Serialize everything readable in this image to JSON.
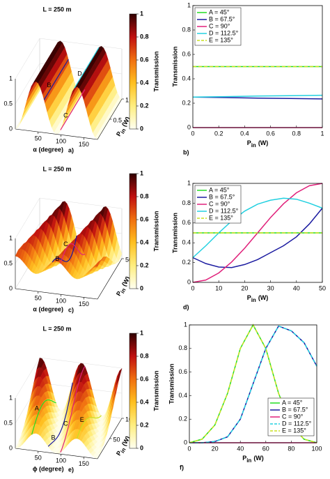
{
  "chart_data": [
    {
      "type": "surface3d",
      "title": "L = 250 m",
      "panel_label": "a)",
      "xlabel": "α (degree)",
      "ylabel": {
        "text": "P",
        "sub": "in",
        "unit": "(W)"
      },
      "xlim": [
        0,
        180
      ],
      "xticks": [
        50,
        100,
        150
      ],
      "ylim": [
        0,
        1
      ],
      "yticks": [
        0.5,
        1
      ],
      "zlim": [
        0,
        1
      ],
      "zticks": [
        0,
        0.5,
        1
      ],
      "colorbar": {
        "label": "Transmission",
        "ticks": [
          0,
          0.2,
          0.4,
          0.6,
          0.8,
          1
        ]
      },
      "curves": [
        {
          "label": "B",
          "color": "#1a1aa0"
        },
        {
          "label": "C",
          "color": "#e0207a"
        },
        {
          "label": "D",
          "color": "#22d0e0"
        }
      ]
    },
    {
      "type": "line",
      "panel_label": "b)",
      "xlabel": {
        "text": "P",
        "sub": "in",
        "unit": "(W)"
      },
      "ylabel": "Transmission",
      "xlim": [
        0,
        1
      ],
      "xticks": [
        0,
        0.2,
        0.4,
        0.6,
        0.8,
        1
      ],
      "ylim": [
        0,
        1
      ],
      "yticks": [
        0,
        0.2,
        0.4,
        0.6,
        0.8,
        1
      ],
      "legend": "upper left",
      "x": [
        0,
        0.25,
        0.5,
        0.75,
        1
      ],
      "series": [
        {
          "name": "A = 45°",
          "color": "#22dd22",
          "values": [
            0.5,
            0.5,
            0.5,
            0.5,
            0.5
          ]
        },
        {
          "name": "B = 67.5°",
          "color": "#1a1aa0",
          "values": [
            0.25,
            0.246,
            0.242,
            0.238,
            0.235
          ]
        },
        {
          "name": "C = 90°",
          "color": "#e0207a",
          "values": [
            0,
            0,
            0,
            0,
            0
          ]
        },
        {
          "name": "D = 112.5°",
          "color": "#22d0e0",
          "values": [
            0.25,
            0.254,
            0.258,
            0.262,
            0.265
          ]
        },
        {
          "name": "E = 135°",
          "color": "#c8e020",
          "dashed": true,
          "values": [
            0.5,
            0.5,
            0.5,
            0.5,
            0.5
          ]
        }
      ]
    },
    {
      "type": "surface3d",
      "title": "L = 250 m",
      "panel_label": "c)",
      "xlabel": "α (degree)",
      "ylabel": {
        "text": "P",
        "sub": "in",
        "unit": "(W)"
      },
      "xlim": [
        0,
        180
      ],
      "xticks": [
        50,
        100,
        150
      ],
      "ylim": [
        0,
        50
      ],
      "yticks": [
        50
      ],
      "zlim": [
        0,
        1
      ],
      "zticks": [
        0,
        0.5,
        1
      ],
      "colorbar": {
        "label": "Transmission",
        "ticks": [
          0,
          0.2,
          0.4,
          0.6,
          0.8,
          1
        ]
      },
      "curves": [
        {
          "label": "B",
          "color": "#1a1aa0"
        },
        {
          "label": "C",
          "color": "#e0207a"
        }
      ]
    },
    {
      "type": "line",
      "panel_label": "d)",
      "xlabel": {
        "text": "P",
        "sub": "in",
        "unit": "(W)"
      },
      "ylabel": "Transmission",
      "xlim": [
        0,
        50
      ],
      "xticks": [
        0,
        10,
        20,
        30,
        40,
        50
      ],
      "ylim": [
        0,
        1
      ],
      "yticks": [
        0,
        0.2,
        0.4,
        0.6,
        0.8,
        1
      ],
      "legend": "upper left",
      "x": [
        0,
        5,
        10,
        15,
        20,
        25,
        30,
        35,
        40,
        45,
        50
      ],
      "series": [
        {
          "name": "A = 45°",
          "color": "#22dd22",
          "values": [
            0.5,
            0.5,
            0.5,
            0.5,
            0.5,
            0.5,
            0.5,
            0.5,
            0.5,
            0.5,
            0.5
          ]
        },
        {
          "name": "B = 67.5°",
          "color": "#1a1aa0",
          "values": [
            0.25,
            0.19,
            0.155,
            0.15,
            0.18,
            0.23,
            0.3,
            0.37,
            0.46,
            0.59,
            0.75
          ]
        },
        {
          "name": "C = 90°",
          "color": "#e0207a",
          "values": [
            0,
            0.024,
            0.095,
            0.206,
            0.345,
            0.5,
            0.655,
            0.794,
            0.905,
            0.976,
            1
          ]
        },
        {
          "name": "D = 112.5°",
          "color": "#22d0e0",
          "values": [
            0.25,
            0.37,
            0.5,
            0.62,
            0.72,
            0.79,
            0.83,
            0.85,
            0.84,
            0.8,
            0.75
          ]
        },
        {
          "name": "E = 135°",
          "color": "#c8e020",
          "dashed": true,
          "values": [
            0.5,
            0.5,
            0.5,
            0.5,
            0.5,
            0.5,
            0.5,
            0.5,
            0.5,
            0.5,
            0.5
          ]
        }
      ]
    },
    {
      "type": "surface3d",
      "title": "L = 250 m",
      "panel_label": "e)",
      "xlabel": "ϕ (degree)",
      "ylabel": {
        "text": "P",
        "sub": "in",
        "unit": "(W)"
      },
      "xlim": [
        0,
        180
      ],
      "xticks": [
        50,
        100,
        150
      ],
      "ylim": [
        0,
        100
      ],
      "yticks": [
        50,
        100
      ],
      "zlim": [
        0,
        1
      ],
      "zticks": [
        0,
        0.5,
        1
      ],
      "colorbar": {
        "label": "Transmission",
        "ticks": [
          0,
          0.2,
          0.4,
          0.6,
          0.8,
          1
        ]
      },
      "curves": [
        {
          "label": "A",
          "color": "#22dd22"
        },
        {
          "label": "B",
          "color": "#1a1aa0"
        },
        {
          "label": "C",
          "color": "#e0207a"
        },
        {
          "label": "E",
          "color": "#c8e020"
        }
      ]
    },
    {
      "type": "line",
      "panel_label": "f)",
      "xlabel": {
        "text": "P",
        "sub": "in",
        "unit": "(W)"
      },
      "ylabel": "Transmission",
      "xlim": [
        0,
        100
      ],
      "xticks": [
        0,
        20,
        40,
        60,
        80,
        100
      ],
      "ylim": [
        0,
        1
      ],
      "yticks": [
        0,
        0.2,
        0.4,
        0.6,
        0.8,
        1
      ],
      "legend": "lower right",
      "x": [
        0,
        10,
        20,
        30,
        40,
        50,
        60,
        70,
        80,
        90,
        100
      ],
      "series": [
        {
          "name": "A = 45°",
          "color": "#22dd22",
          "values": [
            0,
            0.03,
            0.15,
            0.42,
            0.8,
            1,
            0.8,
            0.42,
            0.15,
            0.03,
            0
          ]
        },
        {
          "name": "B = 67.5°",
          "color": "#1a1aa0",
          "values": [
            0,
            0,
            0.01,
            0.05,
            0.2,
            0.5,
            0.8,
            0.99,
            0.95,
            0.85,
            0.65
          ]
        },
        {
          "name": "C = 90°",
          "color": "#e0207a",
          "values": [
            0,
            0,
            0,
            0,
            0,
            0,
            0,
            0,
            0,
            0,
            0
          ]
        },
        {
          "name": "D = 112.5°",
          "color": "#22d0e0",
          "dashed": true,
          "values": [
            0,
            0,
            0.01,
            0.05,
            0.2,
            0.5,
            0.8,
            0.99,
            0.95,
            0.85,
            0.65
          ]
        },
        {
          "name": "E = 135°",
          "color": "#c8e020",
          "dashed": true,
          "values": [
            0,
            0.03,
            0.15,
            0.42,
            0.8,
            1,
            0.8,
            0.42,
            0.15,
            0.03,
            0
          ]
        }
      ]
    }
  ]
}
